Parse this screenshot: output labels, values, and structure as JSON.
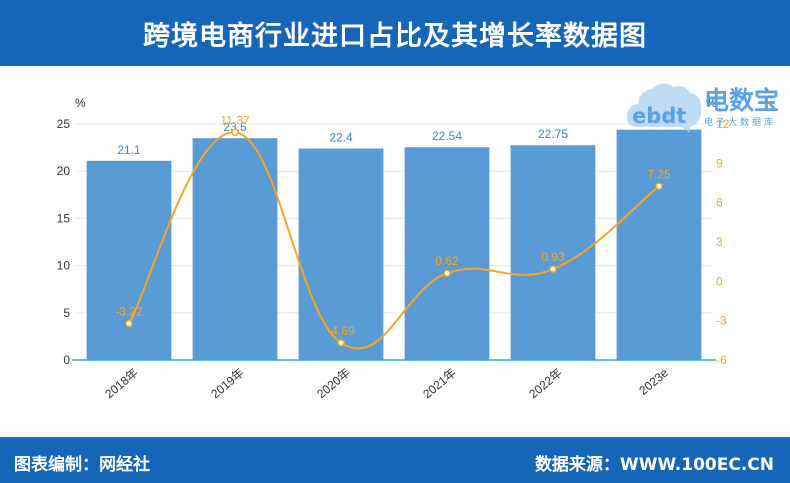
{
  "header": {
    "title": "跨境电商行业进口占比及其增长率数据图"
  },
  "footer": {
    "left": "图表编制：网经社",
    "right": "数据来源：WWW.100EC.CN"
  },
  "logo": {
    "main": "电数宝",
    "sub": "电子大数据库",
    "badge": "ebdt"
  },
  "chart_data": {
    "type": "bar+line",
    "categories": [
      "2018年",
      "2019年",
      "2020年",
      "2021年",
      "2022年",
      "2023e"
    ],
    "series": [
      {
        "name": "进口占比",
        "type": "bar",
        "axis": "left",
        "values": [
          21.1,
          23.5,
          22.4,
          22.54,
          22.75,
          24.4
        ],
        "labels": [
          "21.1",
          "23.5",
          "22.4",
          "22.54",
          "22.75",
          "24.4"
        ]
      },
      {
        "name": "增长率",
        "type": "line",
        "axis": "right",
        "values": [
          -3.22,
          11.37,
          -4.69,
          0.62,
          0.93,
          7.25
        ],
        "labels": [
          "-3.22",
          "11.37",
          "-4.69",
          "0.62",
          "0.93",
          "7.25"
        ]
      }
    ],
    "left_axis": {
      "unit": "%",
      "ylim": [
        0,
        25
      ],
      "ticks": [
        "0",
        "5",
        "10",
        "15",
        "20",
        "25"
      ],
      "tick_values": [
        0,
        5,
        10,
        15,
        20,
        25
      ]
    },
    "right_axis": {
      "unit": "%",
      "ylim": [
        -6,
        12
      ],
      "ticks": [
        "-6",
        "-3",
        "0",
        "3",
        "6",
        "9",
        "12"
      ],
      "tick_values": [
        -6,
        -3,
        0,
        3,
        6,
        9,
        12
      ]
    },
    "colors": {
      "bar": "#5b9bd5",
      "line": "#f5a623",
      "bar_label": "#3f85c6",
      "axis_line": "#2ab0d6",
      "grid": "#e8e8e8",
      "tick_text": "#333333"
    },
    "grid": true
  }
}
